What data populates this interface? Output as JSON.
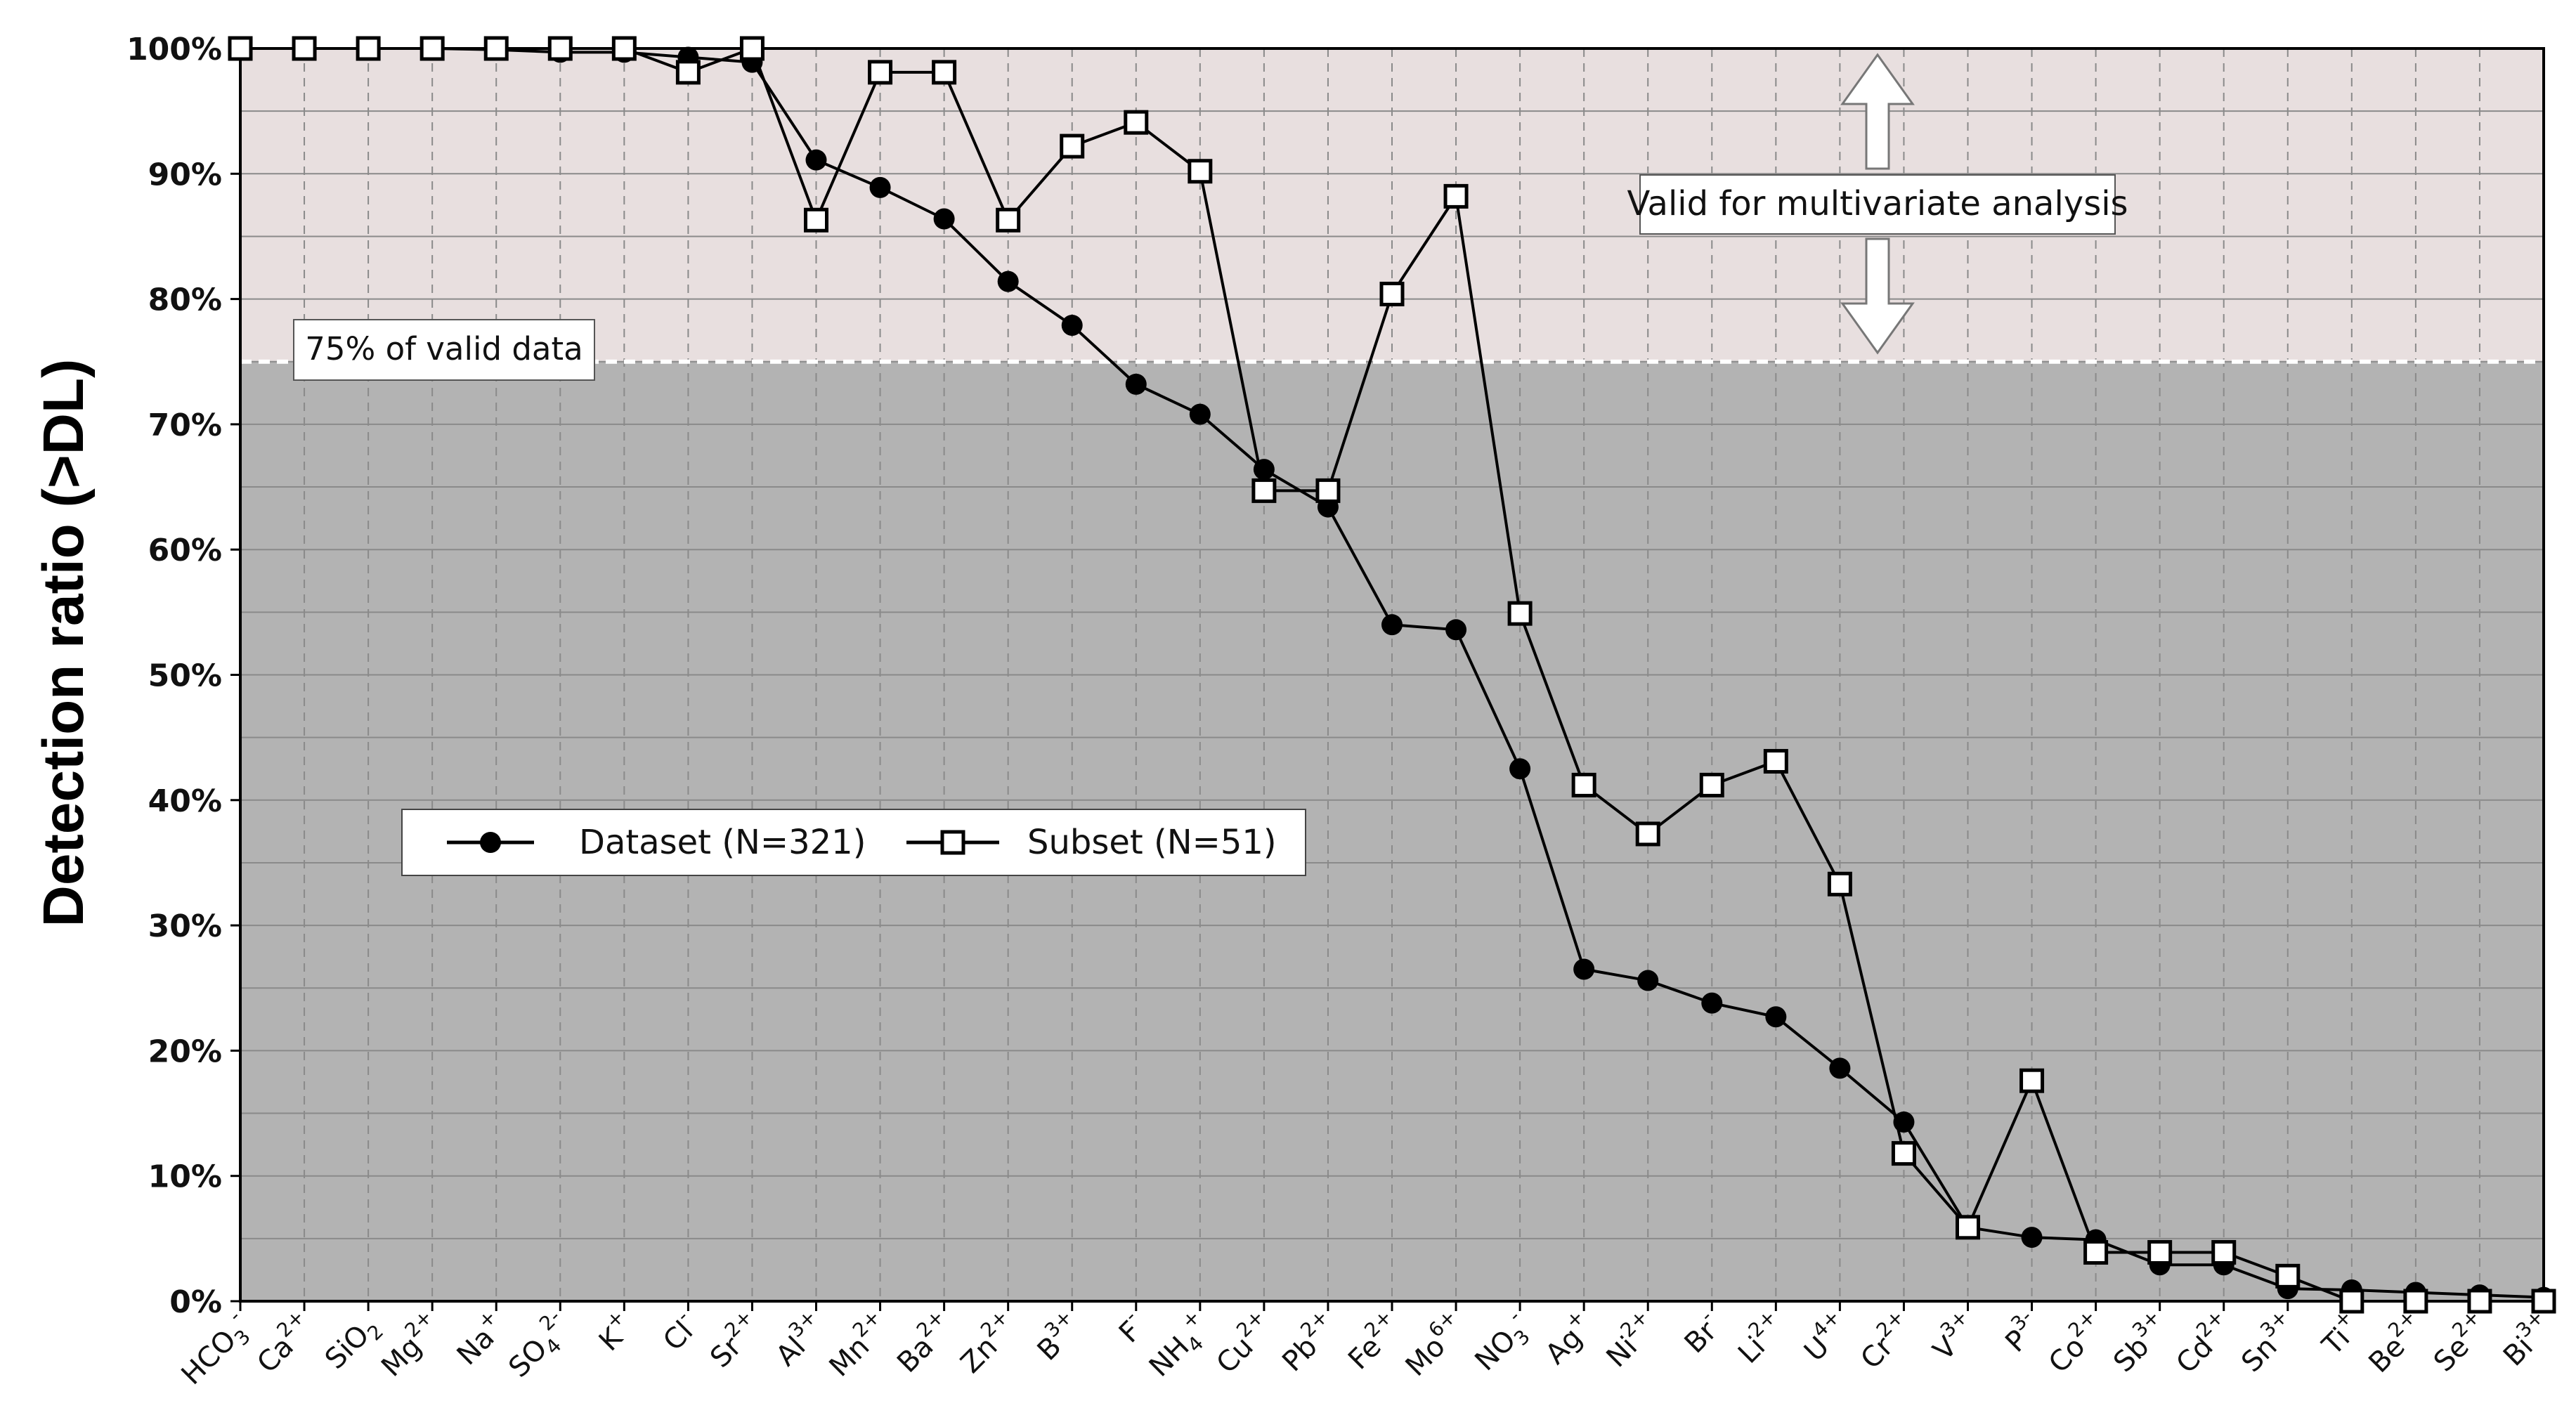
{
  "chart_data": {
    "type": "line",
    "ylabel": "Detection ratio (>DL)",
    "ylim": [
      0,
      100
    ],
    "y_ticks": [
      "0%",
      "10%",
      "20%",
      "30%",
      "40%",
      "50%",
      "60%",
      "70%",
      "80%",
      "90%",
      "100%"
    ],
    "y_tick_values": [
      0,
      10,
      20,
      30,
      40,
      50,
      60,
      70,
      80,
      90,
      100
    ],
    "grid": true,
    "categories": [
      {
        "base": "HCO",
        "sub": "3",
        "sup": "-"
      },
      {
        "base": "Ca",
        "sub": "",
        "sup": "2+"
      },
      {
        "base": "SiO",
        "sub": "2",
        "sup": ""
      },
      {
        "base": "Mg",
        "sub": "",
        "sup": "2+"
      },
      {
        "base": "Na",
        "sub": "",
        "sup": "+"
      },
      {
        "base": "SO",
        "sub": "4",
        "sup": "2-"
      },
      {
        "base": "K",
        "sub": "",
        "sup": "+"
      },
      {
        "base": "Cl",
        "sub": "",
        "sup": "-"
      },
      {
        "base": "Sr",
        "sub": "",
        "sup": "2+"
      },
      {
        "base": "Al",
        "sub": "",
        "sup": "3+"
      },
      {
        "base": "Mn",
        "sub": "",
        "sup": "2+"
      },
      {
        "base": "Ba",
        "sub": "",
        "sup": "2+"
      },
      {
        "base": "Zn",
        "sub": "",
        "sup": "2+"
      },
      {
        "base": "B",
        "sub": "",
        "sup": "3+"
      },
      {
        "base": "F",
        "sub": "",
        "sup": "-"
      },
      {
        "base": "NH",
        "sub": "4",
        "sup": "+"
      },
      {
        "base": "Cu",
        "sub": "",
        "sup": "2+"
      },
      {
        "base": "Pb",
        "sub": "",
        "sup": "2+"
      },
      {
        "base": "Fe",
        "sub": "",
        "sup": "2+"
      },
      {
        "base": "Mo",
        "sub": "",
        "sup": "6+"
      },
      {
        "base": "NO",
        "sub": "3",
        "sup": "-"
      },
      {
        "base": "Ag",
        "sub": "",
        "sup": "+"
      },
      {
        "base": "Ni",
        "sub": "",
        "sup": "2+"
      },
      {
        "base": "Br",
        "sub": "",
        "sup": "-"
      },
      {
        "base": "Li",
        "sub": "",
        "sup": "2+"
      },
      {
        "base": "U",
        "sub": "",
        "sup": "4+"
      },
      {
        "base": "Cr",
        "sub": "",
        "sup": "2+"
      },
      {
        "base": "V",
        "sub": "",
        "sup": "3+"
      },
      {
        "base": "P",
        "sub": "",
        "sup": "3-"
      },
      {
        "base": "Co",
        "sub": "",
        "sup": "2+"
      },
      {
        "base": "Sb",
        "sub": "",
        "sup": "3+"
      },
      {
        "base": "Cd",
        "sub": "",
        "sup": "2+"
      },
      {
        "base": "Sn",
        "sub": "",
        "sup": "3+"
      },
      {
        "base": "Ti",
        "sub": "",
        "sup": "+"
      },
      {
        "base": "Be",
        "sub": "",
        "sup": "2+"
      },
      {
        "base": "Se",
        "sub": "",
        "sup": "2+"
      },
      {
        "base": "Bi",
        "sub": "",
        "sup": "3+"
      }
    ],
    "series": [
      {
        "name": "Dataset (N=321)",
        "marker": "filled-circle",
        "values": [
          100,
          100,
          100,
          100,
          99.9,
          99.7,
          99.7,
          99.3,
          98.9,
          91.1,
          88.9,
          86.4,
          81.4,
          77.9,
          73.2,
          70.8,
          66.4,
          63.4,
          54.0,
          53.6,
          42.5,
          26.5,
          25.6,
          23.8,
          22.7,
          18.6,
          14.3,
          5.9,
          5.1,
          4.9,
          2.9,
          2.9,
          1.0,
          0.9,
          0.7,
          0.5,
          0.3
        ]
      },
      {
        "name": "Subset (N=51)",
        "marker": "open-square",
        "values": [
          100,
          100,
          100,
          100,
          100,
          100,
          100,
          98.1,
          100,
          86.3,
          98.1,
          98.1,
          86.3,
          92.2,
          94.1,
          90.2,
          64.7,
          64.7,
          80.4,
          88.2,
          54.9,
          41.2,
          37.3,
          41.2,
          43.1,
          33.3,
          11.8,
          5.9,
          17.6,
          3.9,
          3.9,
          3.9,
          2.0,
          0.0,
          0.0,
          0.0,
          0.0
        ]
      }
    ],
    "threshold": {
      "value": 75,
      "label": "75% of valid data"
    },
    "valid_region_label": "Valid for multivariate analysis",
    "legend_position": "bottom-left",
    "colors": {
      "upper_region": "#e8dfdf",
      "lower_region": "#b3b3b3",
      "line": "#000000",
      "grid": "#8a8a8a",
      "threshold_line": "#ffffff"
    }
  }
}
